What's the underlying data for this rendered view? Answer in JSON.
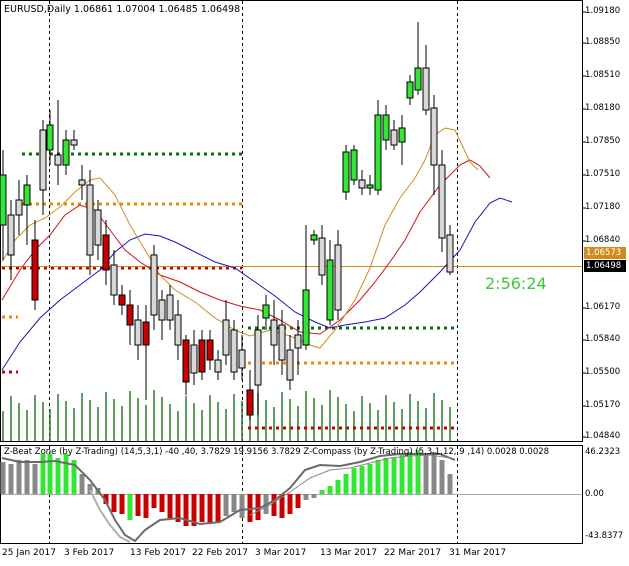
{
  "main_panel": {
    "header": "EURUSD,Daily  1.06861 1.07004 1.06485 1.06498",
    "countdown": "2:56:24",
    "price_axis": [
      "1.09180",
      "1.08850",
      "1.08510",
      "1.08180",
      "1.07850",
      "1.07510",
      "1.07180",
      "1.06840",
      "1.06170",
      "1.05840",
      "1.05500",
      "1.05170",
      "1.04840"
    ],
    "price_box_orange": "1.06573",
    "price_box_black": "1.06498"
  },
  "indicator_panel": {
    "header": "Z-Beat Zone (by Z-Trading) (14,5,3,1) -40 ,40, 3.7829 19.9156 3.7829  Z-Compass (by Z-Trading) (5,3,1,12, 9 ,14) 0.0028 0.0028",
    "axis_labels": [
      "46.2323",
      "0.00",
      "-43.8377"
    ]
  },
  "time_axis": [
    "25 Jan 2017",
    "3 Feb 2017",
    "13 Feb 2017",
    "22 Feb 2017",
    "3 Mar 2017",
    "13 Mar 2017",
    "22 Mar 2017",
    "31 Mar 2017"
  ],
  "colors": {
    "bull_candle": "#33e633",
    "bear_candle": "#c80000",
    "neutral_candle": "#d8d8d8",
    "ma_fast": "#d28c1e",
    "ma_mid": "#d21414",
    "ma_slow": "#1414c8",
    "level_green": "#0a6e0a",
    "level_orange": "#e68c00",
    "level_red": "#c80000",
    "volume": "#2a7a2a",
    "countdown": "#3cc83c"
  }
}
